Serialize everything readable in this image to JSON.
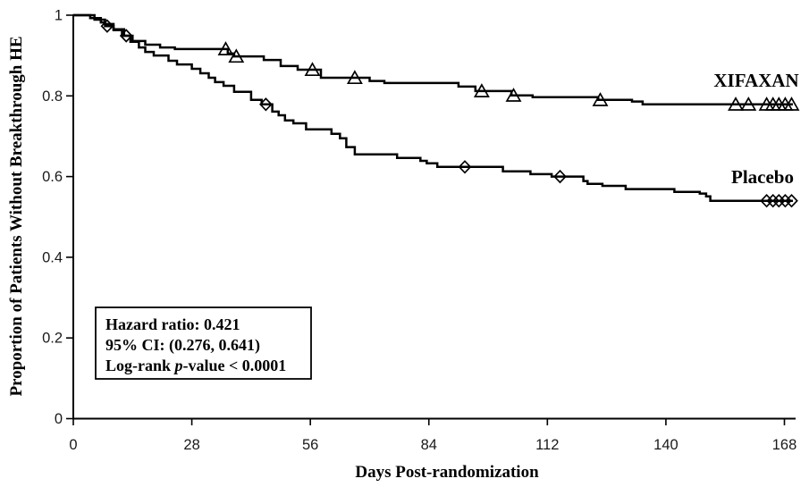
{
  "chart_data": {
    "type": "line",
    "subtype": "kaplan-meier-step",
    "title": "",
    "xlabel": "Days Post-randomization",
    "ylabel": "Proportion of Patients Without Breakthrough HE",
    "xlim": [
      0,
      168
    ],
    "ylim": [
      0,
      1
    ],
    "xticks": [
      0,
      28,
      56,
      84,
      112,
      140,
      168
    ],
    "yticks": [
      1,
      0.8,
      0.6,
      0.4,
      0.2,
      0
    ],
    "grid": false,
    "background": "#ffffff",
    "axis_color": "#000000",
    "legend_position": "labels-at-curve-ends",
    "annotation": {
      "line1": "Hazard ratio: 0.421",
      "line2": "95% CI: (0.276, 0.641)",
      "line3_pre": "Log-rank ",
      "line3_italic": "p",
      "line3_post": "-value < 0.0001"
    },
    "series": [
      {
        "name": "XIFAXAN",
        "marker": "triangle",
        "color": "#000000",
        "points": [
          [
            0,
            1
          ],
          [
            5,
            0.989
          ],
          [
            7.5,
            0.978
          ],
          [
            9.5,
            0.965
          ],
          [
            12,
            0.949
          ],
          [
            14,
            0.936
          ],
          [
            17,
            0.927
          ],
          [
            20.5,
            0.92
          ],
          [
            24,
            0.916
          ],
          [
            36.5,
            0.905
          ],
          [
            38,
            0.898
          ],
          [
            45,
            0.889
          ],
          [
            49,
            0.874
          ],
          [
            53,
            0.865
          ],
          [
            58.5,
            0.845
          ],
          [
            70,
            0.837
          ],
          [
            73.5,
            0.832
          ],
          [
            91,
            0.823
          ],
          [
            95,
            0.812
          ],
          [
            103.5,
            0.801
          ],
          [
            108.5,
            0.797
          ],
          [
            124,
            0.79
          ],
          [
            132,
            0.786
          ],
          [
            134.5,
            0.779
          ],
          [
            170,
            0.779
          ]
        ],
        "censor_marks": [
          [
            36,
            0.916
          ],
          [
            38.5,
            0.898
          ],
          [
            56.5,
            0.865
          ],
          [
            66.5,
            0.845
          ],
          [
            96.5,
            0.812
          ],
          [
            104,
            0.801
          ],
          [
            124.5,
            0.79
          ],
          [
            156.5,
            0.779
          ],
          [
            159.5,
            0.779
          ],
          [
            163.8,
            0.779
          ],
          [
            165.3,
            0.779
          ],
          [
            166.7,
            0.779
          ],
          [
            168.2,
            0.779
          ],
          [
            169.7,
            0.779
          ]
        ]
      },
      {
        "name": "Placebo",
        "marker": "diamond",
        "color": "#000000",
        "points": [
          [
            0,
            1
          ],
          [
            4,
            0.993
          ],
          [
            6.5,
            0.982
          ],
          [
            7.5,
            0.973
          ],
          [
            9.5,
            0.963
          ],
          [
            11.5,
            0.949
          ],
          [
            13.5,
            0.934
          ],
          [
            15.5,
            0.92
          ],
          [
            17,
            0.909
          ],
          [
            19,
            0.9
          ],
          [
            22.5,
            0.887
          ],
          [
            24.5,
            0.878
          ],
          [
            28,
            0.867
          ],
          [
            30,
            0.856
          ],
          [
            32,
            0.845
          ],
          [
            33.5,
            0.834
          ],
          [
            35.5,
            0.825
          ],
          [
            38,
            0.81
          ],
          [
            42,
            0.79
          ],
          [
            44.5,
            0.779
          ],
          [
            47,
            0.761
          ],
          [
            48.5,
            0.752
          ],
          [
            50,
            0.739
          ],
          [
            52,
            0.732
          ],
          [
            55,
            0.717
          ],
          [
            61,
            0.706
          ],
          [
            63,
            0.695
          ],
          [
            64.5,
            0.673
          ],
          [
            66.5,
            0.655
          ],
          [
            76.5,
            0.646
          ],
          [
            82,
            0.639
          ],
          [
            83.5,
            0.633
          ],
          [
            86,
            0.624
          ],
          [
            101.5,
            0.613
          ],
          [
            108,
            0.606
          ],
          [
            113,
            0.6
          ],
          [
            120.5,
            0.589
          ],
          [
            121.5,
            0.582
          ],
          [
            125,
            0.577
          ],
          [
            130.5,
            0.569
          ],
          [
            142,
            0.562
          ],
          [
            148,
            0.558
          ],
          [
            149.5,
            0.551
          ],
          [
            150.5,
            0.54
          ],
          [
            170,
            0.54
          ]
        ],
        "censor_marks": [
          [
            8,
            0.973
          ],
          [
            12.5,
            0.949
          ],
          [
            45.5,
            0.779
          ],
          [
            92.5,
            0.624
          ],
          [
            115,
            0.6
          ],
          [
            163.8,
            0.54
          ],
          [
            165.3,
            0.54
          ],
          [
            166.7,
            0.54
          ],
          [
            168.2,
            0.54
          ],
          [
            169.7,
            0.54
          ]
        ]
      }
    ]
  }
}
